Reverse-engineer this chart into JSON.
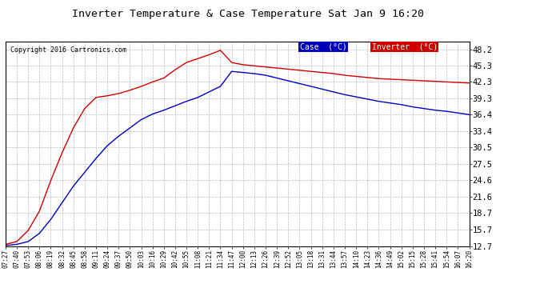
{
  "title": "Inverter Temperature & Case Temperature Sat Jan 9 16:20",
  "copyright": "Copyright 2016 Cartronics.com",
  "yticks": [
    12.7,
    15.7,
    18.7,
    21.6,
    24.6,
    27.5,
    30.5,
    33.4,
    36.4,
    39.3,
    42.3,
    45.3,
    48.2
  ],
  "ymin": 12.7,
  "ymax": 49.5,
  "legend_case_label": "Case  (°C)",
  "legend_inverter_label": "Inverter  (°C)",
  "case_color": "#0000bb",
  "inverter_color": "#cc0000",
  "background_color": "#ffffff",
  "grid_color": "#bbbbbb",
  "xtick_labels": [
    "07:27",
    "07:40",
    "07:53",
    "08:06",
    "08:19",
    "08:32",
    "08:45",
    "08:58",
    "09:11",
    "09:24",
    "09:37",
    "09:50",
    "10:03",
    "10:16",
    "10:29",
    "10:42",
    "10:55",
    "11:08",
    "11:21",
    "11:34",
    "11:47",
    "12:00",
    "12:13",
    "12:26",
    "12:39",
    "12:52",
    "13:05",
    "13:18",
    "13:31",
    "13:44",
    "13:57",
    "14:10",
    "14:23",
    "14:36",
    "14:49",
    "15:02",
    "15:15",
    "15:28",
    "15:41",
    "15:54",
    "16:07",
    "16:20"
  ],
  "case_data": [
    12.8,
    13.0,
    13.5,
    15.0,
    17.5,
    20.5,
    23.5,
    26.0,
    28.5,
    30.8,
    32.5,
    34.0,
    35.5,
    36.5,
    37.2,
    38.0,
    38.8,
    39.5,
    40.5,
    41.5,
    44.2,
    44.0,
    43.8,
    43.5,
    43.0,
    42.5,
    42.0,
    41.5,
    41.0,
    40.5,
    40.0,
    39.6,
    39.2,
    38.8,
    38.5,
    38.2,
    37.8,
    37.5,
    37.2,
    37.0,
    36.7,
    36.4
  ],
  "inverter_data": [
    13.0,
    13.5,
    15.5,
    19.0,
    24.5,
    29.5,
    34.0,
    37.5,
    39.5,
    39.8,
    40.2,
    40.8,
    41.5,
    42.3,
    43.0,
    44.5,
    45.8,
    46.5,
    47.2,
    48.0,
    45.8,
    45.4,
    45.2,
    45.0,
    44.8,
    44.6,
    44.4,
    44.2,
    44.0,
    43.8,
    43.5,
    43.3,
    43.1,
    42.9,
    42.8,
    42.7,
    42.6,
    42.5,
    42.4,
    42.3,
    42.2,
    42.1
  ]
}
